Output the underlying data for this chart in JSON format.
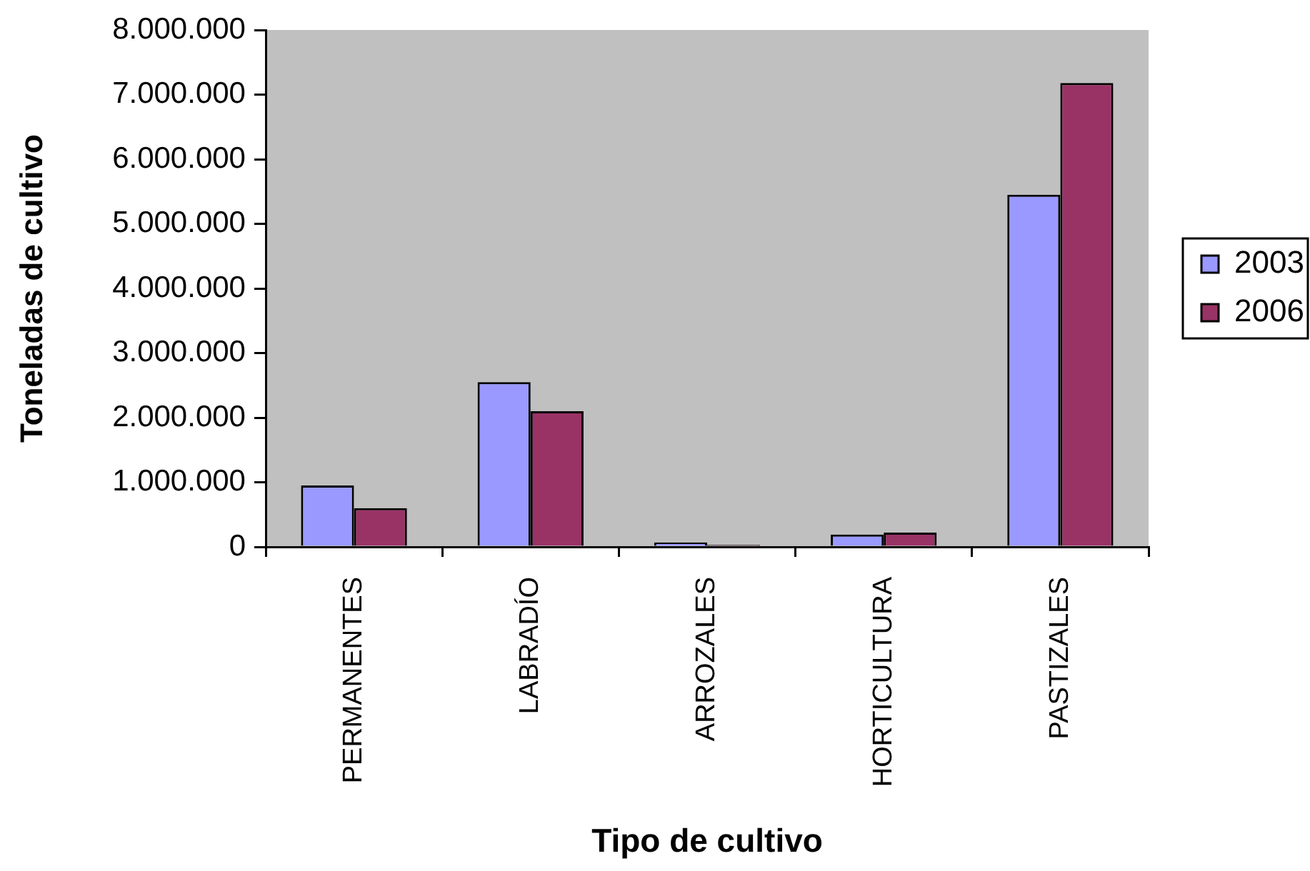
{
  "chart_data": {
    "type": "bar",
    "xlabel": "Tipo de cultivo",
    "ylabel": "Toneladas de cultivo",
    "categories": [
      "PERMANENTES",
      "LABRADÍO",
      "ARROZALES",
      "HORTICULTURA",
      "PASTIZALES"
    ],
    "series": [
      {
        "name": "2003",
        "color": "#9999ff",
        "values": [
          950000,
          2550000,
          70000,
          190000,
          5450000
        ]
      },
      {
        "name": "2006",
        "color": "#993366",
        "values": [
          600000,
          2100000,
          30000,
          220000,
          7180000
        ]
      }
    ],
    "ylim": [
      0,
      8000000
    ],
    "yticks": [
      0,
      {
        "value": 1000000,
        "label": "1.000.000"
      },
      {
        "value": 2000000,
        "label": "2.000.000"
      },
      {
        "value": 3000000,
        "label": "3.000.000"
      },
      {
        "value": 4000000,
        "label": "4.000.000"
      },
      {
        "value": 5000000,
        "label": "5.000.000"
      },
      {
        "value": 6000000,
        "label": "6.000.000"
      },
      {
        "value": 7000000,
        "label": "7.000.000"
      },
      {
        "value": 8000000,
        "label": "8.000.000"
      }
    ],
    "grid": false,
    "legend": "right"
  }
}
